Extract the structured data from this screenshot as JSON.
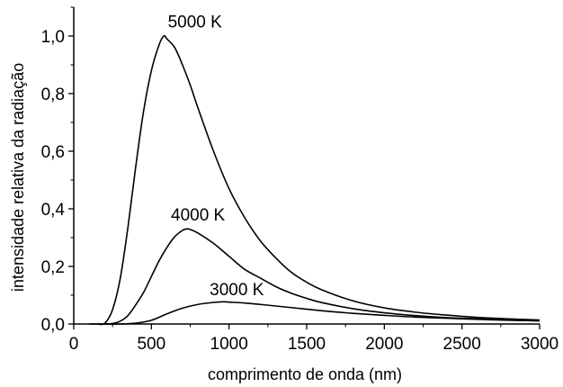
{
  "chart_data": {
    "type": "line",
    "title": "",
    "xlabel": "comprimento de onda (nm)",
    "ylabel": "intensidade relativa da radiação",
    "xlim": [
      0,
      3000
    ],
    "ylim": [
      0,
      1.1
    ],
    "x_ticks": [
      0,
      500,
      1000,
      1500,
      2000,
      2500,
      3000
    ],
    "x_tick_labels": [
      "0",
      "500",
      "1000",
      "1500",
      "2000",
      "2500",
      "3000"
    ],
    "y_ticks": [
      0,
      0.2,
      0.4,
      0.6,
      0.8,
      1.0
    ],
    "y_tick_labels": [
      "0,0",
      "0,2",
      "0,4",
      "0,6",
      "0,8",
      "1,0"
    ],
    "grid": false,
    "legend": "none",
    "curve_color": "#000000",
    "series": [
      {
        "name": "5000 K",
        "x": [
          100,
          150,
          200,
          250,
          300,
          350,
          400,
          450,
          500,
          550,
          580,
          600,
          650,
          700,
          750,
          800,
          900,
          1000,
          1100,
          1200,
          1300,
          1400,
          1500,
          1600,
          1800,
          2000,
          2200,
          2400,
          2600,
          2800,
          3000
        ],
        "values": [
          0.0,
          0.0,
          0.003,
          0.05,
          0.16,
          0.34,
          0.55,
          0.74,
          0.88,
          0.97,
          1.0,
          0.99,
          0.96,
          0.9,
          0.83,
          0.75,
          0.6,
          0.47,
          0.37,
          0.29,
          0.23,
          0.18,
          0.145,
          0.118,
          0.08,
          0.056,
          0.041,
          0.031,
          0.023,
          0.018,
          0.014
        ]
      },
      {
        "name": "4000 K",
        "x": [
          150,
          200,
          250,
          300,
          350,
          400,
          450,
          500,
          550,
          600,
          650,
          700,
          725,
          750,
          800,
          900,
          1000,
          1100,
          1200,
          1300,
          1400,
          1500,
          1600,
          1800,
          2000,
          2200,
          2400,
          2600,
          2800,
          3000
        ],
        "values": [
          0.0,
          0.0,
          0.002,
          0.01,
          0.03,
          0.067,
          0.11,
          0.165,
          0.22,
          0.266,
          0.303,
          0.325,
          0.33,
          0.328,
          0.316,
          0.28,
          0.235,
          0.19,
          0.16,
          0.13,
          0.107,
          0.089,
          0.074,
          0.053,
          0.039,
          0.029,
          0.022,
          0.018,
          0.014,
          0.011
        ]
      },
      {
        "name": "3000 K",
        "x": [
          200,
          300,
          400,
          500,
          600,
          700,
          800,
          900,
          966,
          1000,
          1100,
          1200,
          1400,
          1600,
          1800,
          2000,
          2200,
          2400,
          2600,
          2800,
          3000
        ],
        "values": [
          0.0,
          0.0,
          0.003,
          0.013,
          0.035,
          0.055,
          0.068,
          0.075,
          0.077,
          0.076,
          0.073,
          0.068,
          0.057,
          0.046,
          0.037,
          0.03,
          0.024,
          0.02,
          0.016,
          0.013,
          0.011
        ]
      }
    ],
    "annotations": [
      {
        "text": "5000 K",
        "x": 780,
        "y": 1.03
      },
      {
        "text": "4000 K",
        "x": 800,
        "y": 0.36
      },
      {
        "text": "3000 K",
        "x": 1050,
        "y": 0.1
      }
    ]
  }
}
